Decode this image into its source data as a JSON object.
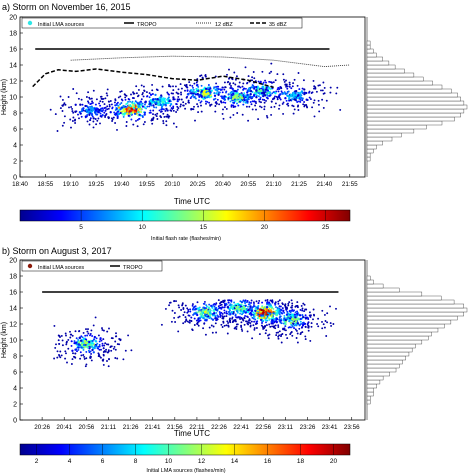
{
  "chart_data": [
    {
      "type": "scatter",
      "panel_label": "a) Storm on November 16, 2015",
      "xlabel": "Time UTC",
      "ylabel": "Height (km)",
      "xticks": [
        "18:40",
        "18:55",
        "19:10",
        "19:25",
        "19:40",
        "19:55",
        "20:10",
        "20:25",
        "20:40",
        "20:55",
        "21:10",
        "21:25",
        "21:40",
        "21:55"
      ],
      "xlim": [
        0,
        13.6
      ],
      "ylim": [
        0,
        20
      ],
      "yticks": [
        0,
        2,
        4,
        6,
        8,
        10,
        12,
        14,
        16,
        18,
        20
      ],
      "legend": {
        "placement": "top",
        "entries": [
          "Initial LMA sources",
          "TROPO",
          "12 dBZ",
          "35 dBZ"
        ]
      },
      "tropo_height": 16,
      "echo_top_12dbz": [
        [
          2.0,
          14.6
        ],
        [
          4.0,
          14.9
        ],
        [
          6.0,
          15.1
        ],
        [
          8.0,
          15.0
        ],
        [
          10.0,
          14.6
        ],
        [
          11.0,
          14.2
        ],
        [
          12.0,
          13.8
        ],
        [
          13.0,
          14.0
        ]
      ],
      "echo_top_35dbz": [
        [
          0.5,
          11.3
        ],
        [
          1.0,
          12.9
        ],
        [
          1.5,
          13.4
        ],
        [
          2.2,
          13.2
        ],
        [
          3.0,
          13.5
        ],
        [
          4.0,
          13.1
        ],
        [
          5.0,
          12.8
        ],
        [
          6.0,
          12.3
        ],
        [
          7.0,
          12.1
        ],
        [
          8.0,
          12.6
        ],
        [
          9.0,
          12.1
        ],
        [
          10.0,
          11.2
        ]
      ],
      "source_clusters": [
        {
          "x": 2.8,
          "y": 8.3,
          "rate": 8
        },
        {
          "x": 4.4,
          "y": 8.4,
          "rate": 25
        },
        {
          "x": 5.5,
          "y": 9.4,
          "rate": 12
        },
        {
          "x": 7.3,
          "y": 10.5,
          "rate": 17
        },
        {
          "x": 8.6,
          "y": 10.0,
          "rate": 15
        },
        {
          "x": 9.5,
          "y": 10.8,
          "rate": 13
        },
        {
          "x": 10.8,
          "y": 10.2,
          "rate": 9
        }
      ],
      "height_histogram_counts": [
        0,
        0,
        0,
        0,
        1,
        1,
        2,
        3,
        5,
        8,
        11,
        15,
        19,
        24,
        28,
        30,
        31,
        32,
        31,
        30,
        29,
        27,
        24,
        21,
        18,
        15,
        12,
        9,
        7,
        5,
        3,
        2,
        1,
        1,
        0,
        0,
        0,
        0,
        0,
        0
      ],
      "colorbar": {
        "label": "Initial flash rate (flashes/min)",
        "ticks": [
          5,
          10,
          15,
          20,
          25
        ],
        "range": [
          0,
          27
        ]
      },
      "colors": {
        "tropo": "#000000",
        "dbz": "#333333",
        "sources_low": "#00008f",
        "legend_marker": "#2ee6e6"
      }
    },
    {
      "type": "scatter",
      "panel_label": "b) Storm on August 3, 2017",
      "xlabel": "Time UTC",
      "ylabel": "Height (km)",
      "xticks": [
        "20:26",
        "20:41",
        "20:56",
        "21:11",
        "21:26",
        "21:41",
        "21:56",
        "22:11",
        "22:26",
        "22:41",
        "22:56",
        "23:11",
        "23:26",
        "23:41",
        "23:56"
      ],
      "xlim": [
        -1,
        14.6
      ],
      "ylim": [
        0,
        20
      ],
      "yticks": [
        0,
        2,
        4,
        6,
        8,
        10,
        12,
        14,
        16,
        18,
        20
      ],
      "legend": {
        "placement": "top",
        "entries": [
          "Initial LMA sources",
          "TROPO"
        ]
      },
      "tropo_height": 16,
      "source_clusters": [
        {
          "x": 2.0,
          "y": 9.5,
          "rate": 12
        },
        {
          "x": 7.4,
          "y": 13.5,
          "rate": 13
        },
        {
          "x": 8.9,
          "y": 14.0,
          "rate": 11
        },
        {
          "x": 10.1,
          "y": 13.4,
          "rate": 21
        },
        {
          "x": 11.3,
          "y": 12.6,
          "rate": 12
        }
      ],
      "height_histogram_counts": [
        0,
        0,
        0,
        0,
        1,
        1,
        2,
        2,
        3,
        4,
        5,
        7,
        9,
        10,
        11,
        12,
        13,
        14,
        15,
        17,
        19,
        20,
        22,
        24,
        26,
        28,
        30,
        31,
        30,
        27,
        23,
        17,
        10,
        5,
        2,
        1,
        0,
        0,
        0,
        0
      ],
      "colorbar": {
        "label": "Initial LMA sources (flashes/min)",
        "ticks": [
          2,
          4,
          6,
          8,
          10,
          12,
          14,
          16,
          18,
          20
        ],
        "range": [
          1,
          21
        ]
      },
      "colors": {
        "tropo": "#000000",
        "sources_low": "#00008f",
        "legend_marker": "#8b1a0a"
      }
    }
  ]
}
